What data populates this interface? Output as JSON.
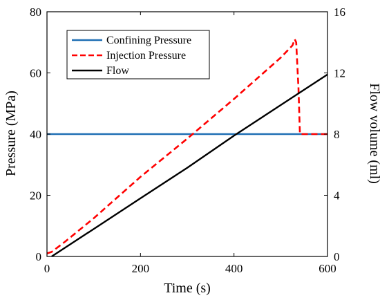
{
  "chart_data": {
    "type": "line",
    "xlabel": "Time (s)",
    "ylabel_left": "Pressure (MPa)",
    "ylabel_right": "Flow volume (ml)",
    "xlim": [
      0,
      600
    ],
    "ylim_left": [
      0,
      80
    ],
    "ylim_right": [
      0,
      16
    ],
    "x_ticks": [
      0,
      200,
      400,
      600
    ],
    "y_ticks_left": [
      0,
      20,
      40,
      60,
      80
    ],
    "y_ticks_right": [
      0,
      4,
      8,
      12,
      16
    ],
    "grid": false,
    "legend_position": "top-left",
    "series": [
      {
        "name": "Confining Pressure",
        "axis": "left",
        "color": "#1f6fb4",
        "dash": "solid",
        "x": [
          0,
          600
        ],
        "y": [
          40,
          40
        ]
      },
      {
        "name": "Injection Pressure",
        "axis": "left",
        "color": "#ff0000",
        "dash": "dashed",
        "x": [
          0,
          10,
          40,
          100,
          200,
          300,
          400,
          500,
          525,
          530,
          533,
          538,
          541,
          560,
          600
        ],
        "y": [
          1,
          1.5,
          5,
          12.5,
          26,
          38.5,
          51.5,
          65,
          69,
          71,
          70,
          55,
          40,
          40,
          40
        ]
      },
      {
        "name": "Flow",
        "axis": "right",
        "color": "#000000",
        "dash": "solid",
        "x": [
          10,
          100,
          200,
          300,
          400,
          500,
          600
        ],
        "y": [
          0,
          1.8,
          3.8,
          5.8,
          7.9,
          9.9,
          11.9
        ]
      }
    ]
  }
}
